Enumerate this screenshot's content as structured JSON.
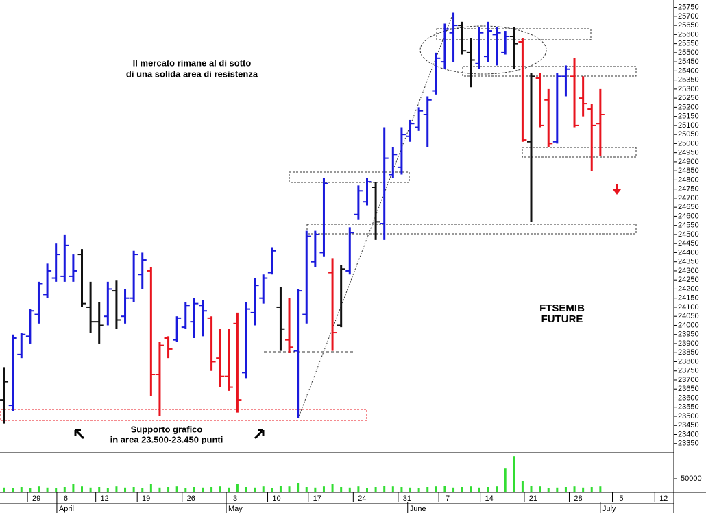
{
  "chart_data": {
    "type": "ohlc",
    "annotations": [
      "Il mercato rimane al di sotto",
      "di una solida area di resistenza",
      "Supporto grafico",
      "in area 23.500-23.450 punti",
      "FTSEMIB",
      "FUTURE"
    ],
    "high": [
      23770,
      23950,
      23960,
      24090,
      24240,
      24340,
      24450,
      24500,
      24390,
      24420,
      24240,
      24130,
      24240,
      24250,
      24200,
      24410,
      24400,
      24320,
      23910,
      23940,
      24050,
      24130,
      24150,
      24140,
      24050,
      23980,
      23980,
      24070,
      24130,
      24260,
      24280,
      24430,
      24210,
      24150,
      24200,
      24520,
      24520,
      24810,
      24370,
      24330,
      24540,
      24770,
      24810,
      24790,
      25090,
      24980,
      25090,
      25130,
      25200,
      25260,
      25500,
      25660,
      25720,
      25670,
      25580,
      25640,
      25670,
      25640,
      25620,
      25640,
      25580,
      25390,
      25390,
      25300,
      25390,
      25430,
      25470,
      25370,
      25220,
      25300
    ],
    "low": [
      23460,
      23530,
      23820,
      23900,
      24010,
      24150,
      24240,
      24240,
      24240,
      24100,
      23960,
      23900,
      24000,
      23980,
      24010,
      24130,
      24200,
      23610,
      23500,
      23820,
      23910,
      23980,
      23930,
      23940,
      23750,
      23660,
      23640,
      23520,
      23710,
      24000,
      24120,
      24280,
      23860,
      23850,
      23490,
      24010,
      24320,
      24380,
      23860,
      23990,
      24280,
      24580,
      24660,
      24470,
      24470,
      24810,
      24830,
      25010,
      25070,
      24980,
      25270,
      25410,
      25450,
      25490,
      25310,
      25410,
      25450,
      25430,
      25490,
      25410,
      25010,
      24570,
      25090,
      24980,
      25000,
      25260,
      25090,
      25150,
      24850,
      24930
    ],
    "open": [
      23590,
      23560,
      23840,
      23940,
      24060,
      24170,
      24260,
      24270,
      24270,
      24390,
      24100,
      24020,
      24050,
      24190,
      24050,
      24150,
      24280,
      24300,
      23730,
      23930,
      23920,
      23990,
      24020,
      24110,
      24040,
      23820,
      23720,
      24010,
      23740,
      24070,
      24150,
      24290,
      24100,
      23920,
      23860,
      24060,
      24350,
      24400,
      24290,
      24000,
      24300,
      24610,
      24680,
      24760,
      24560,
      24830,
      24870,
      25040,
      25090,
      25160,
      25290,
      25450,
      25610,
      25650,
      25500,
      25440,
      25480,
      25600,
      25500,
      25590,
      25560,
      25010,
      25360,
      25240,
      25010,
      25370,
      25370,
      25250,
      25190,
      25110
    ],
    "close": [
      23690,
      23930,
      23950,
      24080,
      24230,
      24300,
      24390,
      24440,
      24300,
      24120,
      24020,
      24000,
      24200,
      24030,
      24150,
      24390,
      24360,
      23730,
      23890,
      23870,
      24040,
      24110,
      24120,
      24080,
      23800,
      23720,
      23660,
      23590,
      24090,
      24220,
      24260,
      24410,
      23980,
      23880,
      24190,
      24490,
      24500,
      24780,
      23960,
      24310,
      24510,
      24740,
      24790,
      24570,
      24920,
      24940,
      25050,
      25110,
      25180,
      25240,
      25470,
      25630,
      25650,
      25510,
      25460,
      25610,
      25620,
      25610,
      25590,
      25550,
      25020,
      25370,
      25100,
      25000,
      25370,
      25410,
      25100,
      25220,
      25100,
      25160
    ],
    "colors": [
      "#111111",
      "#1a1adc",
      "#1a1adc",
      "#1a1adc",
      "#1a1adc",
      "#1a1adc",
      "#1a1adc",
      "#1a1adc",
      "#1a1adc",
      "#111111",
      "#111111",
      "#111111",
      "#1a1adc",
      "#111111",
      "#1a1adc",
      "#1a1adc",
      "#1a1adc",
      "#e8141e",
      "#e8141e",
      "#e8141e",
      "#1a1adc",
      "#1a1adc",
      "#1a1adc",
      "#1a1adc",
      "#e8141e",
      "#e8141e",
      "#e8141e",
      "#e8141e",
      "#1a1adc",
      "#1a1adc",
      "#1a1adc",
      "#1a1adc",
      "#111111",
      "#e8141e",
      "#1a1adc",
      "#1a1adc",
      "#1a1adc",
      "#1a1adc",
      "#e8141e",
      "#111111",
      "#1a1adc",
      "#1a1adc",
      "#1a1adc",
      "#111111",
      "#1a1adc",
      "#1a1adc",
      "#1a1adc",
      "#1a1adc",
      "#1a1adc",
      "#1a1adc",
      "#1a1adc",
      "#1a1adc",
      "#1a1adc",
      "#111111",
      "#111111",
      "#1a1adc",
      "#1a1adc",
      "#1a1adc",
      "#1a1adc",
      "#111111",
      "#e8141e",
      "#111111",
      "#e8141e",
      "#e8141e",
      "#1a1adc",
      "#1a1adc",
      "#e8141e",
      "#e8141e",
      "#e8141e",
      "#e8141e"
    ],
    "volume": [
      18000,
      15000,
      20000,
      17000,
      22000,
      18000,
      15000,
      20000,
      30000,
      22000,
      18000,
      20000,
      17000,
      22000,
      18000,
      20000,
      15000,
      30000,
      18000,
      20000,
      22000,
      17000,
      20000,
      18000,
      20000,
      22000,
      18000,
      30000,
      20000,
      18000,
      22000,
      17000,
      25000,
      22000,
      35000,
      20000,
      18000,
      22000,
      30000,
      20000,
      18000,
      22000,
      17000,
      20000,
      25000,
      22000,
      20000,
      18000,
      15000,
      20000,
      22000,
      25000,
      18000,
      20000,
      22000,
      18000,
      20000,
      22000,
      87000,
      132000,
      40000,
      25000,
      22000,
      15000,
      18000,
      20000,
      22000,
      18000,
      20000,
      22000
    ],
    "volume_color": "#33dd33",
    "xlim": [
      -0.48,
      77.5
    ],
    "ylim": [
      23300,
      25790
    ],
    "yticks": [
      23350,
      23400,
      23450,
      23500,
      23550,
      23600,
      23650,
      23700,
      23750,
      23800,
      23850,
      23900,
      23950,
      24000,
      24050,
      24100,
      24150,
      24200,
      24250,
      24300,
      24350,
      24400,
      24450,
      24500,
      24550,
      24600,
      24650,
      24700,
      24750,
      24800,
      24850,
      24900,
      24950,
      25000,
      25050,
      25100,
      25150,
      25200,
      25250,
      25300,
      25350,
      25400,
      25450,
      25500,
      25550,
      25600,
      25650,
      25700,
      25750
    ],
    "vlim": [
      0,
      140000
    ],
    "vticks": [
      50000
    ],
    "xticks": [
      {
        "value": 2.7,
        "label": "29"
      },
      {
        "value": 6.1,
        "label": "6"
      },
      {
        "value": 10.6,
        "label": "12"
      },
      {
        "value": 15.4,
        "label": "19"
      },
      {
        "value": 20.6,
        "label": "26"
      },
      {
        "value": 25.7,
        "label": "3"
      },
      {
        "value": 30.5,
        "label": "10"
      },
      {
        "value": 35.2,
        "label": "17"
      },
      {
        "value": 40.4,
        "label": "24"
      },
      {
        "value": 45.6,
        "label": "31"
      },
      {
        "value": 50.3,
        "label": "7"
      },
      {
        "value": 55.1,
        "label": "14"
      },
      {
        "value": 60.2,
        "label": "21"
      },
      {
        "value": 65.4,
        "label": "28"
      },
      {
        "value": 70.4,
        "label": "5"
      },
      {
        "value": 75.3,
        "label": "12"
      }
    ],
    "months": [
      {
        "value": 6.1,
        "label": "April"
      },
      {
        "value": 25.7,
        "label": "May"
      },
      {
        "value": 46.7,
        "label": "June"
      },
      {
        "value": 69,
        "label": "July"
      }
    ]
  }
}
